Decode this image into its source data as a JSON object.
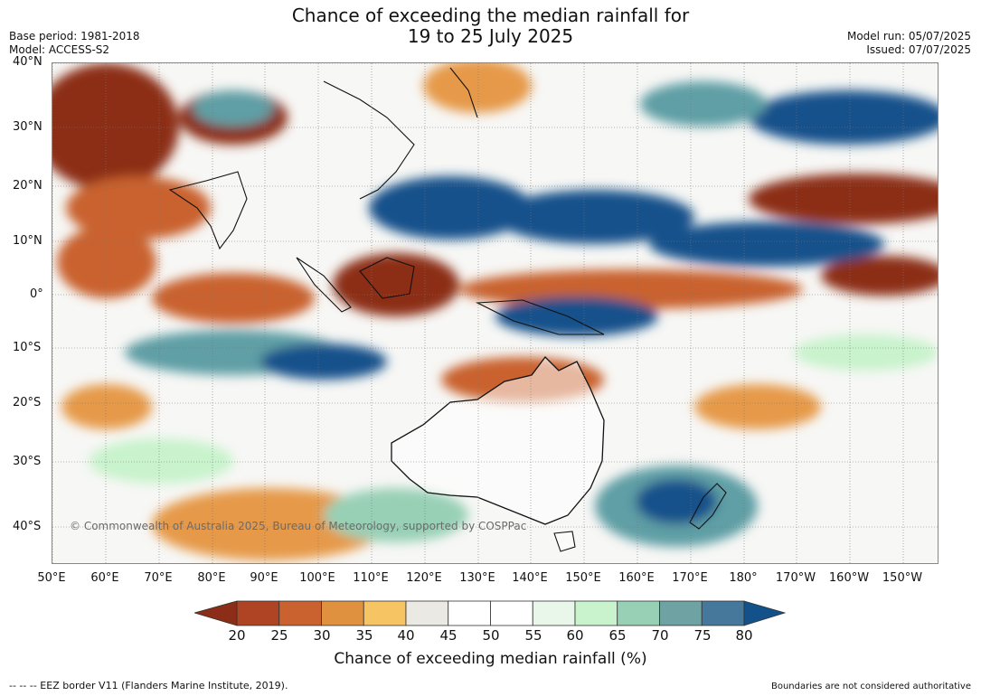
{
  "header": {
    "title_line1": "Chance of exceeding the median rainfall for",
    "title_line2": "19 to 25 July 2025",
    "base_period": "Base period: 1981-2018",
    "model": "Model: ACCESS-S2",
    "model_run": "Model run: 05/07/2025",
    "issued": "Issued: 07/07/2025"
  },
  "map": {
    "lat_labels": [
      "40°N",
      "30°N",
      "20°N",
      "10°N",
      "0°",
      "10°S",
      "20°S",
      "30°S",
      "40°S"
    ],
    "lon_labels": [
      "50°E",
      "60°E",
      "70°E",
      "80°E",
      "90°E",
      "100°E",
      "110°E",
      "120°E",
      "130°E",
      "140°E",
      "150°E",
      "160°E",
      "170°E",
      "180°",
      "170°W",
      "160°W",
      "150°W"
    ],
    "copyright": "© Commonwealth of Australia 2025, Bureau of Meteorology, supported by COSPPac",
    "colors": {
      "very_dry": "#8c2d18",
      "dry": "#c9622f",
      "moderately_dry": "#e69a4a",
      "slightly_dry": "#f6c463",
      "neutral": "#eceae4",
      "slightly_wet": "#c8f3cc",
      "moderately_wet": "#98d0b6",
      "wet": "#5f9fa5",
      "very_wet": "#13518b"
    }
  },
  "colorbar": {
    "ticks": [
      "20",
      "25",
      "30",
      "35",
      "40",
      "45",
      "50",
      "55",
      "60",
      "65",
      "70",
      "75",
      "80"
    ],
    "colors": [
      "#8c2d18",
      "#ae4424",
      "#c9622f",
      "#e0913f",
      "#f6c463",
      "#ebe9e3",
      "#ffffff",
      "#ffffff",
      "#e9f6ea",
      "#c8f3cc",
      "#98d0b6",
      "#6fa3a3",
      "#45789b",
      "#13518b"
    ],
    "label": "Chance of exceeding median rainfall (%)"
  },
  "footer": {
    "eez_note": "--  --  -- EEZ border V11 (Flanders Marine Institute, 2019).",
    "boundaries_note": "Boundaries are not considered authoritative"
  }
}
